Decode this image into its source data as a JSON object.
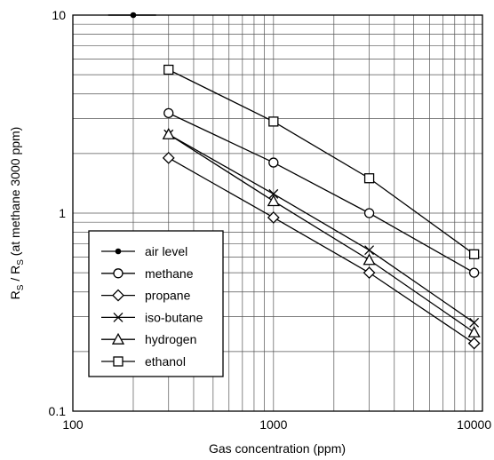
{
  "chart_data": {
    "type": "line",
    "x_scale": "log",
    "y_scale": "log",
    "xlim": [
      100,
      11000
    ],
    "ylim": [
      0.1,
      10
    ],
    "grid": true,
    "legend_position": "bottom-left",
    "xlabel": "Gas concentration (ppm)",
    "ylabel": {
      "main": "R",
      "sub1": "S",
      "mid": " / R",
      "sub2": "S",
      "tail": " (at methane 3000 ppm)"
    },
    "x_ticks": [
      {
        "value": 100,
        "label": "100"
      },
      {
        "value": 1000,
        "label": "1000"
      },
      {
        "value": 10000,
        "label": "10000"
      }
    ],
    "y_ticks": [
      {
        "value": 10,
        "label": "10"
      },
      {
        "value": 1,
        "label": "1"
      },
      {
        "value": 0.1,
        "label": "0.1"
      }
    ],
    "series": [
      {
        "name": "air level",
        "marker": "dot",
        "points": [
          {
            "x": 200,
            "y": 10,
            "xerr": [
              150,
              260
            ]
          }
        ]
      },
      {
        "name": "methane",
        "marker": "circle",
        "points": [
          {
            "x": 300,
            "y": 3.2
          },
          {
            "x": 1000,
            "y": 1.8
          },
          {
            "x": 3000,
            "y": 1.0
          },
          {
            "x": 10000,
            "y": 0.5
          }
        ]
      },
      {
        "name": "propane",
        "marker": "diamond",
        "points": [
          {
            "x": 300,
            "y": 1.9
          },
          {
            "x": 1000,
            "y": 0.95
          },
          {
            "x": 3000,
            "y": 0.5
          },
          {
            "x": 10000,
            "y": 0.22
          }
        ]
      },
      {
        "name": "iso-butane",
        "marker": "x",
        "points": [
          {
            "x": 300,
            "y": 2.5
          },
          {
            "x": 1000,
            "y": 1.25
          },
          {
            "x": 3000,
            "y": 0.65
          },
          {
            "x": 10000,
            "y": 0.28
          }
        ]
      },
      {
        "name": "hydrogen",
        "marker": "triangle",
        "points": [
          {
            "x": 300,
            "y": 2.5
          },
          {
            "x": 1000,
            "y": 1.15
          },
          {
            "x": 3000,
            "y": 0.58
          },
          {
            "x": 10000,
            "y": 0.25
          }
        ]
      },
      {
        "name": "ethanol",
        "marker": "square",
        "points": [
          {
            "x": 300,
            "y": 5.3
          },
          {
            "x": 1000,
            "y": 2.9
          },
          {
            "x": 3000,
            "y": 1.5
          },
          {
            "x": 10000,
            "y": 0.62
          }
        ]
      }
    ]
  }
}
